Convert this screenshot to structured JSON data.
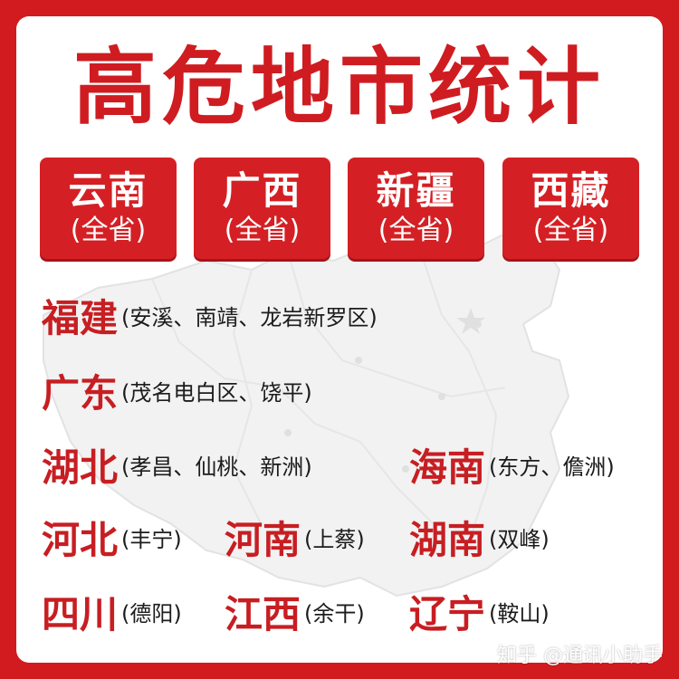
{
  "title": "高危地市统计",
  "chips": [
    {
      "name": "云南",
      "sub": "(全省)"
    },
    {
      "name": "广西",
      "sub": "(全省)"
    },
    {
      "name": "新疆",
      "sub": "(全省)"
    },
    {
      "name": "西藏",
      "sub": "(全省)"
    }
  ],
  "entries": {
    "fujian": {
      "province": "福建",
      "cities": "(安溪、南靖、龙岩新罗区)"
    },
    "guangdong": {
      "province": "广东",
      "cities": "(茂名电白区、饶平)"
    },
    "hubei": {
      "province": "湖北",
      "cities": "(孝昌、仙桃、新洲)"
    },
    "hainan": {
      "province": "海南",
      "cities": "(东方、儋洲)"
    },
    "hebei": {
      "province": "河北",
      "cities": "(丰宁)"
    },
    "henan": {
      "province": "河南",
      "cities": "(上蔡)"
    },
    "hunan": {
      "province": "湖南",
      "cities": "(双峰)"
    },
    "sichuan": {
      "province": "四川",
      "cities": "(德阳)"
    },
    "jiangxi": {
      "province": "江西",
      "cities": "(余干)"
    },
    "liaoning": {
      "province": "辽宁",
      "cities": "(鞍山)"
    }
  },
  "watermark": "知乎 @通讯小助手",
  "colors": {
    "brand_red": "#d21b1e",
    "chip_red": "#d42024",
    "province_red": "#c71e22",
    "text_dark": "#1c1c1c"
  }
}
